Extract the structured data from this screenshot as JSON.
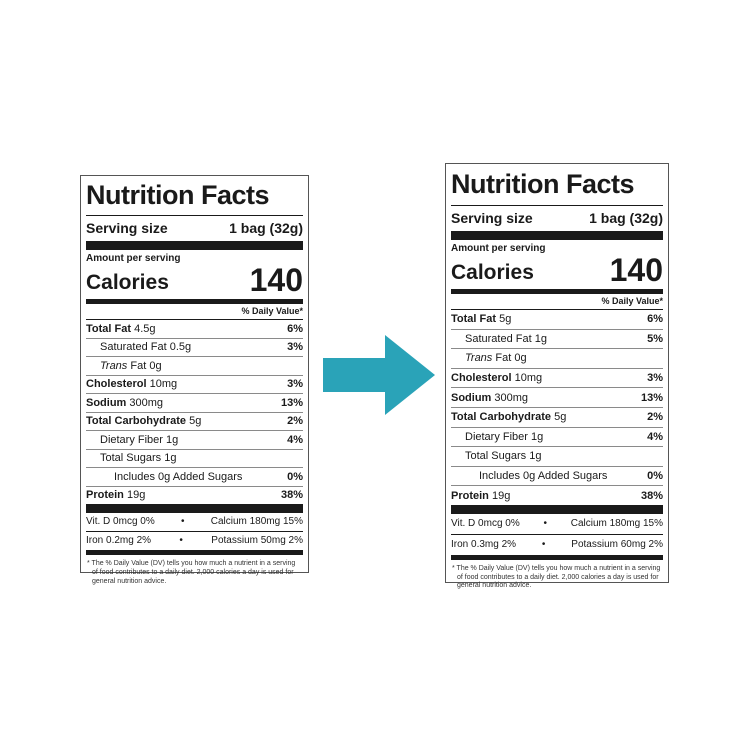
{
  "colors": {
    "arrow": "#2aa3b8",
    "ink": "#1a1a1a"
  },
  "arrow_icon": "right-arrow-icon",
  "labels": [
    {
      "title": "Nutrition Facts",
      "serving_size_label": "Serving size",
      "serving_size_value": "1 bag (32g)",
      "amount_per_serving": "Amount per serving",
      "calories_label": "Calories",
      "calories_value": "140",
      "daily_value_header": "% Daily Value*",
      "total_fat": {
        "name": "Total Fat",
        "amount": "4.5g",
        "pct": "6%"
      },
      "saturated_fat": {
        "name": "Saturated Fat",
        "amount": "0.5g",
        "pct": "3%"
      },
      "trans_fat": {
        "name_italic": "Trans",
        "name": "Fat",
        "amount": "0g"
      },
      "cholesterol": {
        "name": "Cholesterol",
        "amount": "10mg",
        "pct": "3%"
      },
      "sodium": {
        "name": "Sodium",
        "amount": "300mg",
        "pct": "13%"
      },
      "total_carb": {
        "name": "Total Carbohydrate",
        "amount": "5g",
        "pct": "2%"
      },
      "fiber": {
        "name": "Dietary Fiber",
        "amount": "1g",
        "pct": "4%"
      },
      "total_sugars": {
        "name": "Total Sugars",
        "amount": "1g"
      },
      "added_sugars": {
        "text": "Includes 0g Added Sugars",
        "pct": "0%"
      },
      "protein": {
        "name": "Protein",
        "amount": "19g",
        "pct": "38%"
      },
      "vit_d": "Vit. D 0mcg 0%",
      "calcium": "Calcium 180mg 15%",
      "iron": "Iron 0.2mg 2%",
      "potassium": "Potassium 50mg 2%",
      "bullet": "•",
      "footnote": "* The % Daily Value (DV) tells you how much a nutrient in a serving of food contributes to a daily diet. 2,000 calories a day is used for general nutrition advice."
    },
    {
      "title": "Nutrition Facts",
      "serving_size_label": "Serving size",
      "serving_size_value": "1 bag (32g)",
      "amount_per_serving": "Amount per serving",
      "calories_label": "Calories",
      "calories_value": "140",
      "daily_value_header": "% Daily Value*",
      "total_fat": {
        "name": "Total Fat",
        "amount": "5g",
        "pct": "6%"
      },
      "saturated_fat": {
        "name": "Saturated Fat",
        "amount": "1g",
        "pct": "5%"
      },
      "trans_fat": {
        "name_italic": "Trans",
        "name": "Fat",
        "amount": "0g"
      },
      "cholesterol": {
        "name": "Cholesterol",
        "amount": "10mg",
        "pct": "3%"
      },
      "sodium": {
        "name": "Sodium",
        "amount": "300mg",
        "pct": "13%"
      },
      "total_carb": {
        "name": "Total Carbohydrate",
        "amount": "5g",
        "pct": "2%"
      },
      "fiber": {
        "name": "Dietary Fiber",
        "amount": "1g",
        "pct": "4%"
      },
      "total_sugars": {
        "name": "Total Sugars",
        "amount": "1g"
      },
      "added_sugars": {
        "text": "Includes 0g Added Sugars",
        "pct": "0%"
      },
      "protein": {
        "name": "Protein",
        "amount": "19g",
        "pct": "38%"
      },
      "vit_d": "Vit. D 0mcg 0%",
      "calcium": "Calcium 180mg 15%",
      "iron": "Iron 0.3mg 2%",
      "potassium": "Potassium 60mg 2%",
      "bullet": "•",
      "footnote": "* The % Daily Value (DV) tells you how much a nutrient in a serving of food contributes to a daily diet. 2,000 calories a day is used for general nutrition advice."
    }
  ]
}
